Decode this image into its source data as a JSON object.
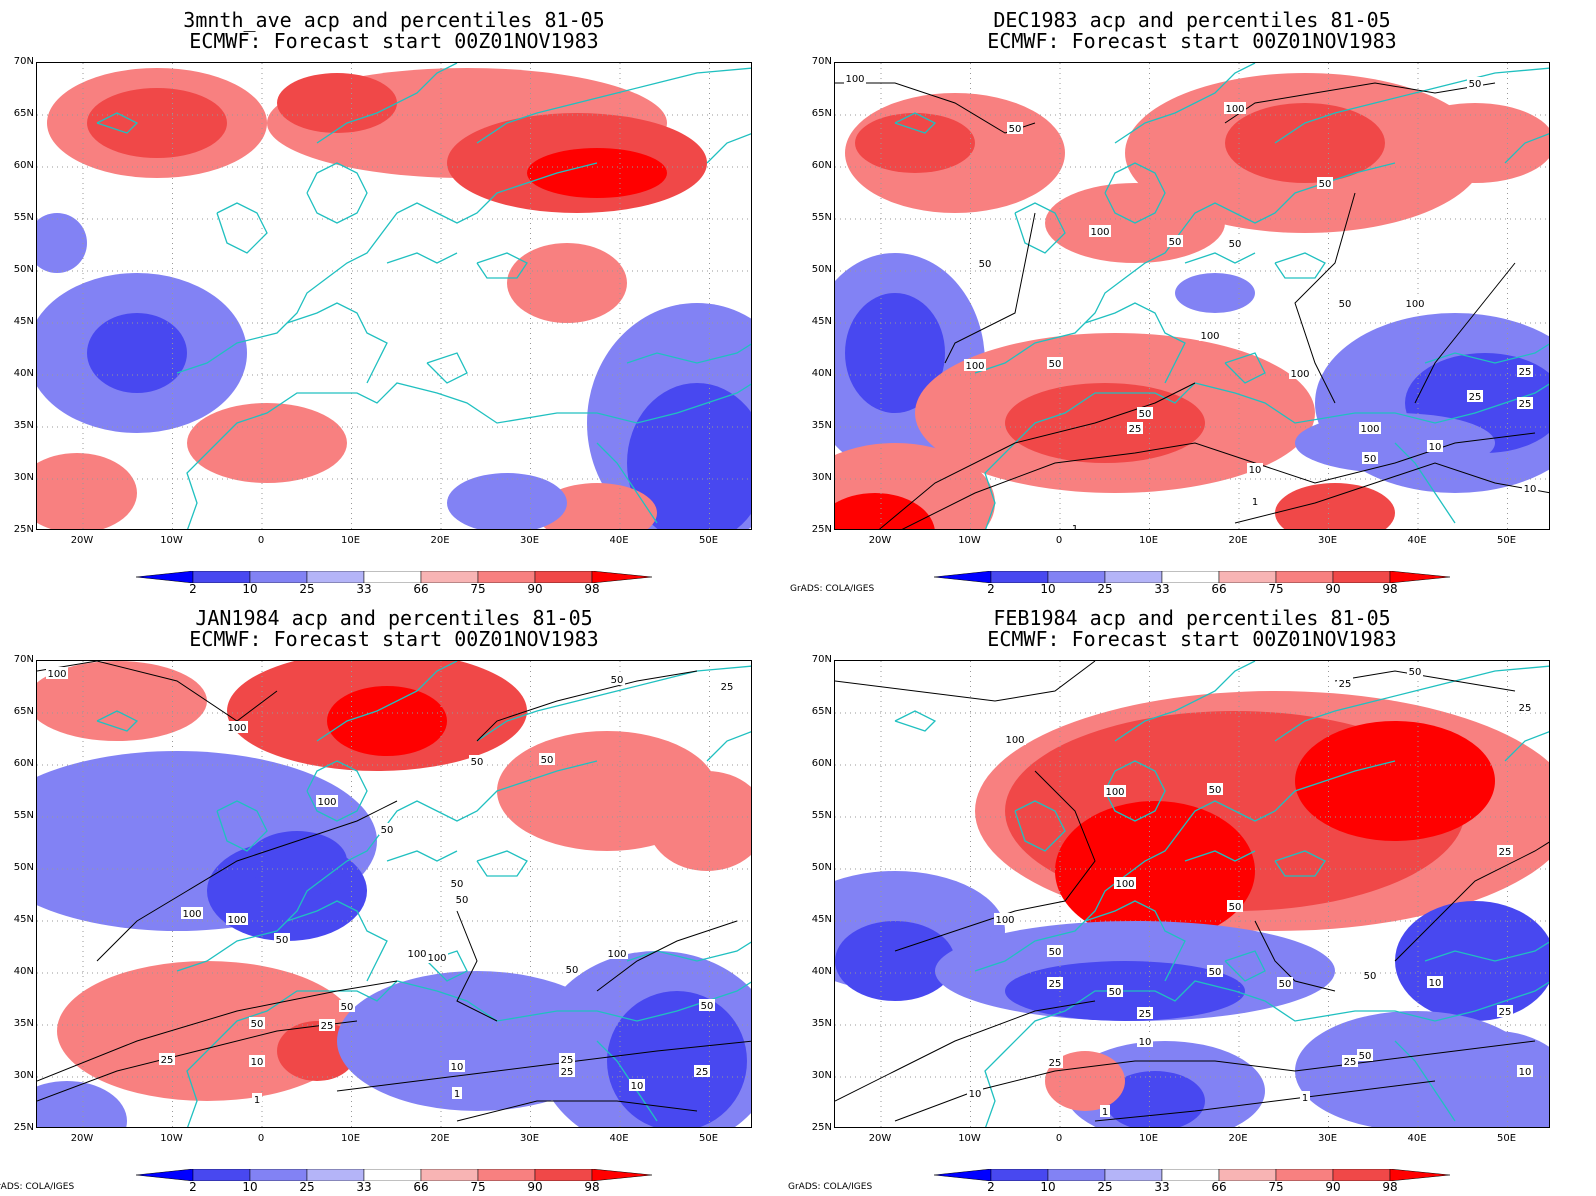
{
  "credit": "GrADS: COLA/IGES",
  "lat_labels": [
    "70N",
    "65N",
    "60N",
    "55N",
    "50N",
    "45N",
    "40N",
    "35N",
    "30N",
    "25N"
  ],
  "lon_labels": [
    "20W",
    "10W",
    "0",
    "10E",
    "20E",
    "30E",
    "40E",
    "50E"
  ],
  "colorbar": {
    "labels": [
      "2",
      "10",
      "25",
      "33",
      "66",
      "75",
      "90",
      "98"
    ],
    "colors": [
      "#0000ff",
      "#4848f0",
      "#8282f4",
      "#b4b4f8",
      "#ffffff",
      "#f8b4b4",
      "#f88080",
      "#f04848",
      "#ff0000"
    ]
  },
  "colors": {
    "coastline": "#20c0c0",
    "contour": "#000000",
    "grid": "#999999"
  },
  "panels": [
    {
      "name": "3mnth-ave",
      "title_line1": "3mnth_ave acp and percentiles 81-05",
      "title_line2": "ECMWF: Forecast start 00Z01NOV1983",
      "show_credit": false,
      "contour_labels": []
    },
    {
      "name": "dec1983",
      "title_line1": "DEC1983 acp and percentiles 81-05",
      "title_line2": "ECMWF: Forecast start 00Z01NOV1983",
      "show_credit": true,
      "contour_labels": [
        "100",
        "50",
        "100",
        "50",
        "50",
        "50",
        "100",
        "50",
        "50",
        "50",
        "100",
        "100",
        "100",
        "50",
        "100",
        "25",
        "50",
        "100",
        "25",
        "50",
        "10",
        "10",
        "1",
        "25",
        "10",
        "1",
        "25"
      ]
    },
    {
      "name": "jan1984",
      "title_line1": "JAN1984 acp and percentiles 81-05",
      "title_line2": "ECMWF: Forecast start 00Z01NOV1983",
      "show_credit": true,
      "contour_labels": [
        "100",
        "100",
        "50",
        "50",
        "50",
        "100",
        "50",
        "25",
        "100",
        "100",
        "50",
        "100",
        "50",
        "100",
        "100",
        "50",
        "50",
        "50",
        "25",
        "50",
        "25",
        "10",
        "10",
        "25",
        "25",
        "1",
        "10",
        "1",
        "25",
        "50"
      ]
    },
    {
      "name": "feb1984",
      "title_line1": "FEB1984 acp and percentiles 81-05",
      "title_line2": "ECMWF: Forecast start 00Z01NOV1983",
      "show_credit": true,
      "contour_labels": [
        "25",
        "50",
        "25",
        "100",
        "100",
        "50",
        "100",
        "25",
        "50",
        "100",
        "50",
        "50",
        "50",
        "10",
        "50",
        "25",
        "25",
        "50",
        "25",
        "10",
        "50",
        "25",
        "10",
        "10",
        "1",
        "1",
        "25"
      ]
    }
  ]
}
